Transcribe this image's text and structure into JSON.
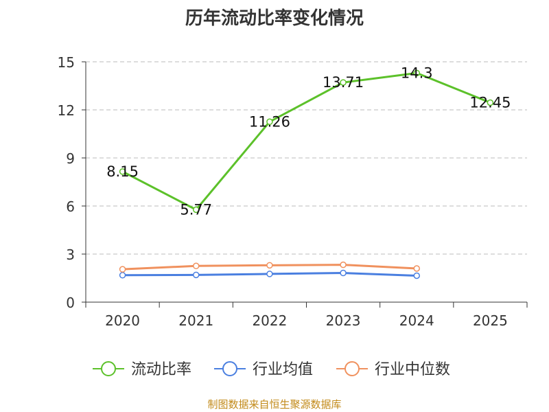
{
  "title": "历年流动比率变化情况",
  "source": "制图数据来自恒生聚源数据库",
  "colors": {
    "current_ratio": "#5cc12a",
    "industry_mean": "#4a7fe0",
    "industry_median": "#f0915e",
    "axis": "#333333",
    "grid": "#bbbbbb"
  },
  "chart_data": {
    "type": "line",
    "categories": [
      "2020",
      "2021",
      "2022",
      "2023",
      "2024",
      "2025"
    ],
    "ylim": [
      0,
      15
    ],
    "yticks": [
      "0",
      "3",
      "6",
      "9",
      "12",
      "15"
    ],
    "grid": true,
    "legend_position": "bottom",
    "series": [
      {
        "name": "流动比率",
        "values": [
          8.15,
          5.77,
          11.26,
          13.71,
          14.3,
          12.45
        ],
        "labels": [
          "8.15",
          "5.77",
          "11.26",
          "13.71",
          "14.3",
          "12.45"
        ]
      },
      {
        "name": "行业均值",
        "values": [
          1.68,
          1.7,
          1.76,
          1.82,
          1.65,
          null
        ]
      },
      {
        "name": "行业中位数",
        "values": [
          2.05,
          2.26,
          2.3,
          2.33,
          2.1,
          null
        ]
      }
    ]
  }
}
